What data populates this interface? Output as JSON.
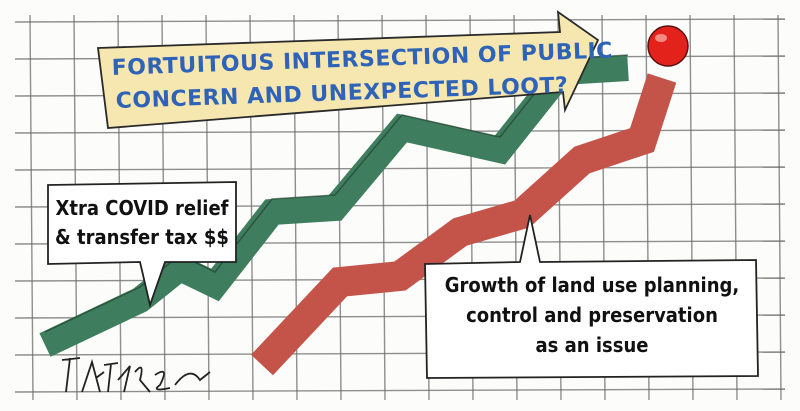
{
  "banner": {
    "lines": [
      "FORTUITOUS INTERSECTION OF PUBLIC",
      "CONCERN AND UNEXPECTED LOOT?"
    ]
  },
  "callouts": [
    {
      "lines": [
        "Xtra COVID relief",
        "& transfer tax $$"
      ]
    },
    {
      "lines": [
        "Growth of land use planning,",
        "control and preservation",
        "as an issue"
      ]
    }
  ]
}
